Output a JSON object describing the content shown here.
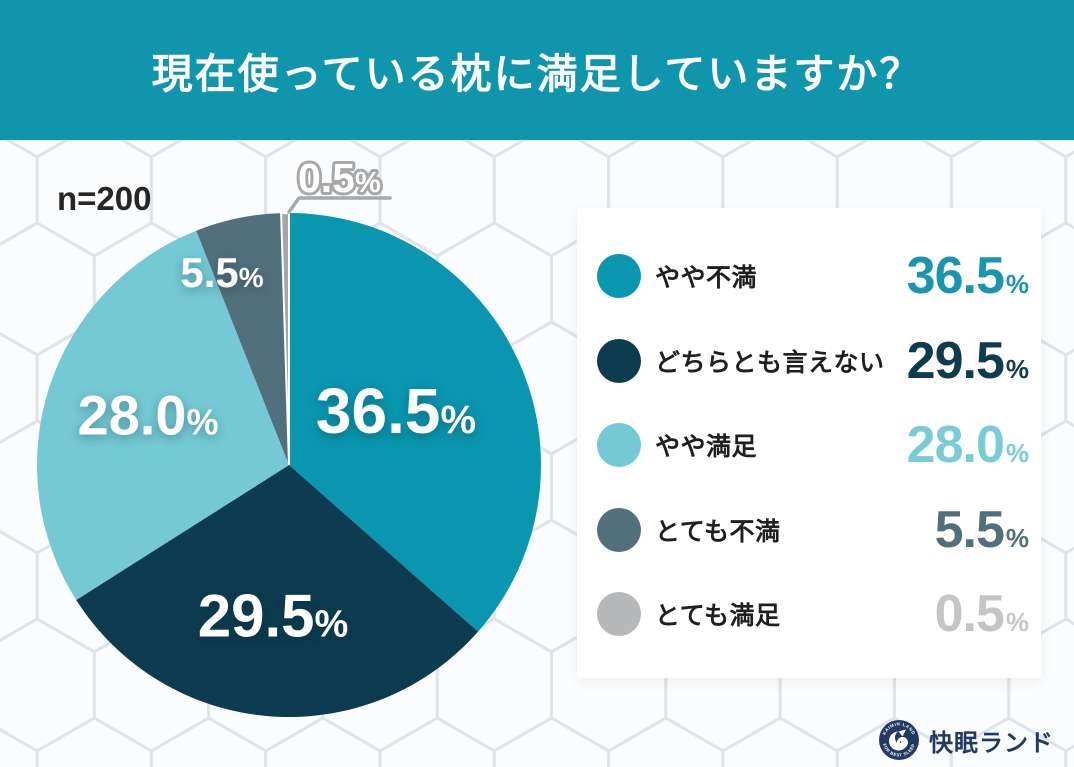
{
  "header": {
    "title": "現在使っている枕に満足していますか？"
  },
  "sample_label": "n=200",
  "percent_sign": "%",
  "chart_data": {
    "type": "pie",
    "title": "現在使っている枕に満足していますか？",
    "sample_size": 200,
    "unit": "%",
    "start_angle_deg": -90,
    "direction": "clockwise",
    "legend_position": "right",
    "slices": [
      {
        "label": "やや不満",
        "value": 36.5,
        "value_text": "36.5",
        "color": "#0a96af",
        "value_color": "#1995ad"
      },
      {
        "label": "どちらとも言えない",
        "value": 29.5,
        "value_text": "29.5",
        "color": "#0d3b4f",
        "value_color": "#0d3b4f"
      },
      {
        "label": "やや満足",
        "value": 28.0,
        "value_text": "28.0",
        "color": "#74c9d4",
        "value_color": "#79cbd6"
      },
      {
        "label": "とても不満",
        "value": 5.5,
        "value_text": "5.5",
        "color": "#52707c",
        "value_color": "#52707c"
      },
      {
        "label": "とても満足",
        "value": 0.5,
        "value_text": "0.5",
        "color": "#a5a6a8",
        "dot_color": "#b6b8ba",
        "value_color": "#c4c5c7"
      }
    ]
  },
  "brand": {
    "name": "快眠ランド",
    "badge_top": "KAIMIN LAND",
    "badge_bottom": "FOR BEST SLEEP"
  }
}
